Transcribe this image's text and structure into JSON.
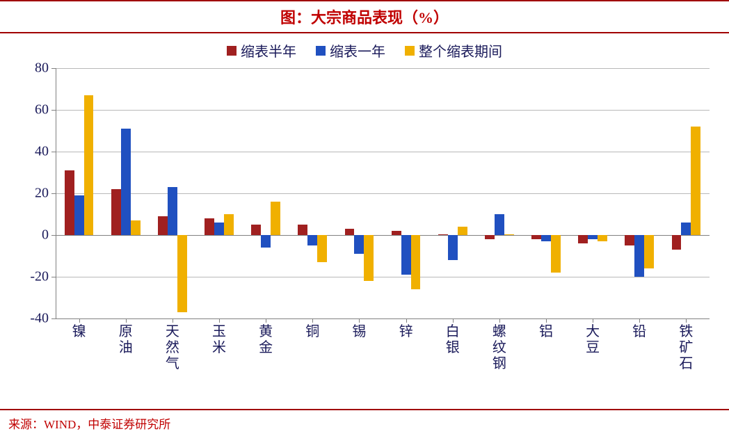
{
  "title": "图：大宗商品表现（%）",
  "source": "来源：WIND，中泰证券研究所",
  "chart": {
    "type": "bar",
    "background_color": "#ffffff",
    "grid_color": "#b8b8b8",
    "axis_color": "#808080",
    "tick_label_color": "#1a1a5a",
    "tick_fontsize": 20,
    "title_color": "#c00000",
    "title_fontsize": 22,
    "ylim": [
      -40,
      80
    ],
    "ytick_step": 20,
    "yticks": [
      -40,
      -20,
      0,
      20,
      40,
      60,
      80
    ],
    "categories": [
      "镍",
      "原油",
      "天然气",
      "玉米",
      "黄金",
      "铜",
      "锡",
      "锌",
      "白银",
      "螺纹钢",
      "铝",
      "大豆",
      "铅",
      "铁矿石"
    ],
    "series": [
      {
        "name": "缩表半年",
        "color": "#a02020",
        "values": [
          31,
          22,
          9,
          8,
          5,
          5,
          3,
          2,
          0.5,
          -2,
          -2,
          -4,
          -5,
          -7
        ]
      },
      {
        "name": "缩表一年",
        "color": "#2050c0",
        "values": [
          19,
          51,
          23,
          6,
          -6,
          -5,
          -9,
          -19,
          -12,
          10,
          -3,
          -2,
          -20,
          6
        ]
      },
      {
        "name": "整个缩表期间",
        "color": "#f0b000",
        "values": [
          67,
          7,
          -37,
          10,
          16,
          -13,
          -22,
          -26,
          4,
          0.5,
          -18,
          -3,
          -16,
          52
        ]
      }
    ],
    "legend_fontsize": 20,
    "xlabel_fontsize": 20,
    "bar_group_width": 0.62
  }
}
